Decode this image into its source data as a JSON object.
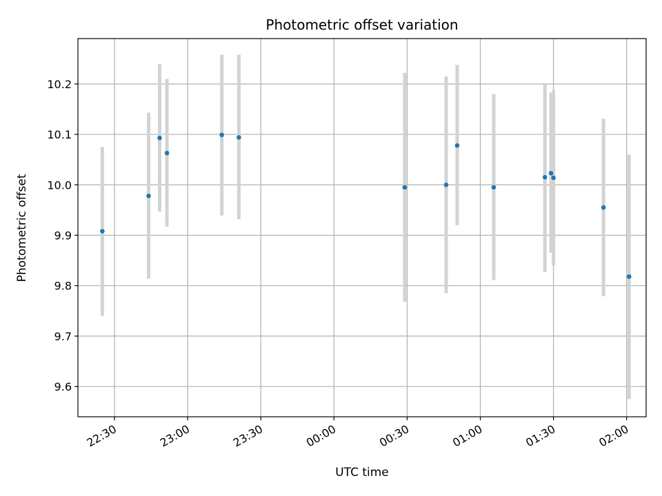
{
  "chart_data": {
    "type": "scatter",
    "title": "Photometric offset variation",
    "xlabel": "UTC time",
    "ylabel": "Photometric offset",
    "x_unit": "UTC time (HH:MM)",
    "xlim": [
      "22:15",
      "02:08"
    ],
    "ylim": [
      9.54,
      10.29
    ],
    "x_ticks": [
      "22:30",
      "23:00",
      "23:30",
      "00:00",
      "00:30",
      "01:00",
      "01:30",
      "02:00"
    ],
    "y_ticks": [
      "9.6",
      "9.7",
      "9.8",
      "9.9",
      "10.0",
      "10.1",
      "10.2"
    ],
    "grid": true,
    "x_tick_rotation": "30-degree slant",
    "points": [
      {
        "x": "22:25",
        "y": 9.908,
        "err_low": 9.74,
        "err_high": 10.075
      },
      {
        "x": "22:44",
        "y": 9.978,
        "err_low": 9.814,
        "err_high": 10.143
      },
      {
        "x": "22:48.5",
        "y": 10.093,
        "err_low": 9.947,
        "err_high": 10.24
      },
      {
        "x": "22:51.5",
        "y": 10.063,
        "err_low": 9.917,
        "err_high": 10.21
      },
      {
        "x": "23:14",
        "y": 10.099,
        "err_low": 9.939,
        "err_high": 10.258
      },
      {
        "x": "23:21",
        "y": 10.094,
        "err_low": 9.932,
        "err_high": 10.258
      },
      {
        "x": "00:29",
        "y": 9.995,
        "err_low": 9.768,
        "err_high": 10.222
      },
      {
        "x": "00:46",
        "y": 10.0,
        "err_low": 9.785,
        "err_high": 10.215
      },
      {
        "x": "00:50.5",
        "y": 10.078,
        "err_low": 9.92,
        "err_high": 10.238
      },
      {
        "x": "01:05.5",
        "y": 9.995,
        "err_low": 9.811,
        "err_high": 10.18
      },
      {
        "x": "01:26.5",
        "y": 10.015,
        "err_low": 9.827,
        "err_high": 10.2
      },
      {
        "x": "01:29",
        "y": 10.023,
        "err_low": 9.865,
        "err_high": 10.183
      },
      {
        "x": "01:30",
        "y": 10.014,
        "err_low": 9.84,
        "err_high": 10.188
      },
      {
        "x": "01:50.5",
        "y": 9.955,
        "err_low": 9.779,
        "err_high": 10.131
      },
      {
        "x": "02:01",
        "y": 9.818,
        "err_low": 9.575,
        "err_high": 10.06
      }
    ],
    "colors": {
      "marker": "#1f77b4",
      "errorbar": "#d3d3d3",
      "grid": "#b0b0b0",
      "axes": "#000000"
    }
  }
}
